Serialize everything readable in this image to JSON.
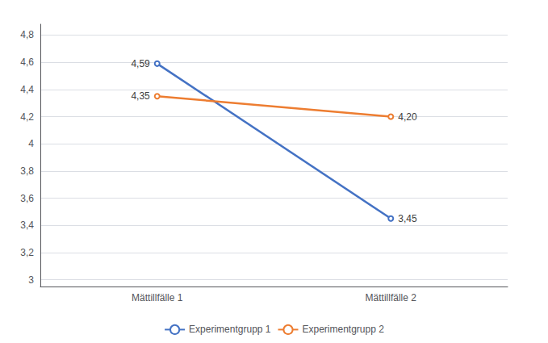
{
  "chart_data": {
    "type": "line",
    "categories": [
      "Mättillfälle 1",
      "Mättillfälle 2"
    ],
    "series": [
      {
        "name": "Experimentgrupp 1",
        "color": "#4472C4",
        "values": [
          4.59,
          3.45
        ],
        "value_labels": [
          "4,59",
          "3,45"
        ]
      },
      {
        "name": "Experimentgrupp 2",
        "color": "#ED7D31",
        "values": [
          4.35,
          4.2
        ],
        "value_labels": [
          "4,35",
          "4,20"
        ]
      }
    ],
    "ylim": [
      2.95,
      4.88
    ],
    "yticks": [
      3,
      {
        "value": 3.2,
        "label": "3,2"
      },
      {
        "value": 3.4,
        "label": "3,4"
      },
      {
        "value": 3.6,
        "label": "3,6"
      },
      {
        "value": 3.8,
        "label": "3,8"
      },
      4,
      {
        "value": 4.2,
        "label": "4,2"
      },
      {
        "value": 4.4,
        "label": "4,4"
      },
      {
        "value": 4.6,
        "label": "4,6"
      },
      {
        "value": 4.8,
        "label": "4,8"
      }
    ],
    "grid": true,
    "legend": "bottom",
    "data_labels": true
  }
}
